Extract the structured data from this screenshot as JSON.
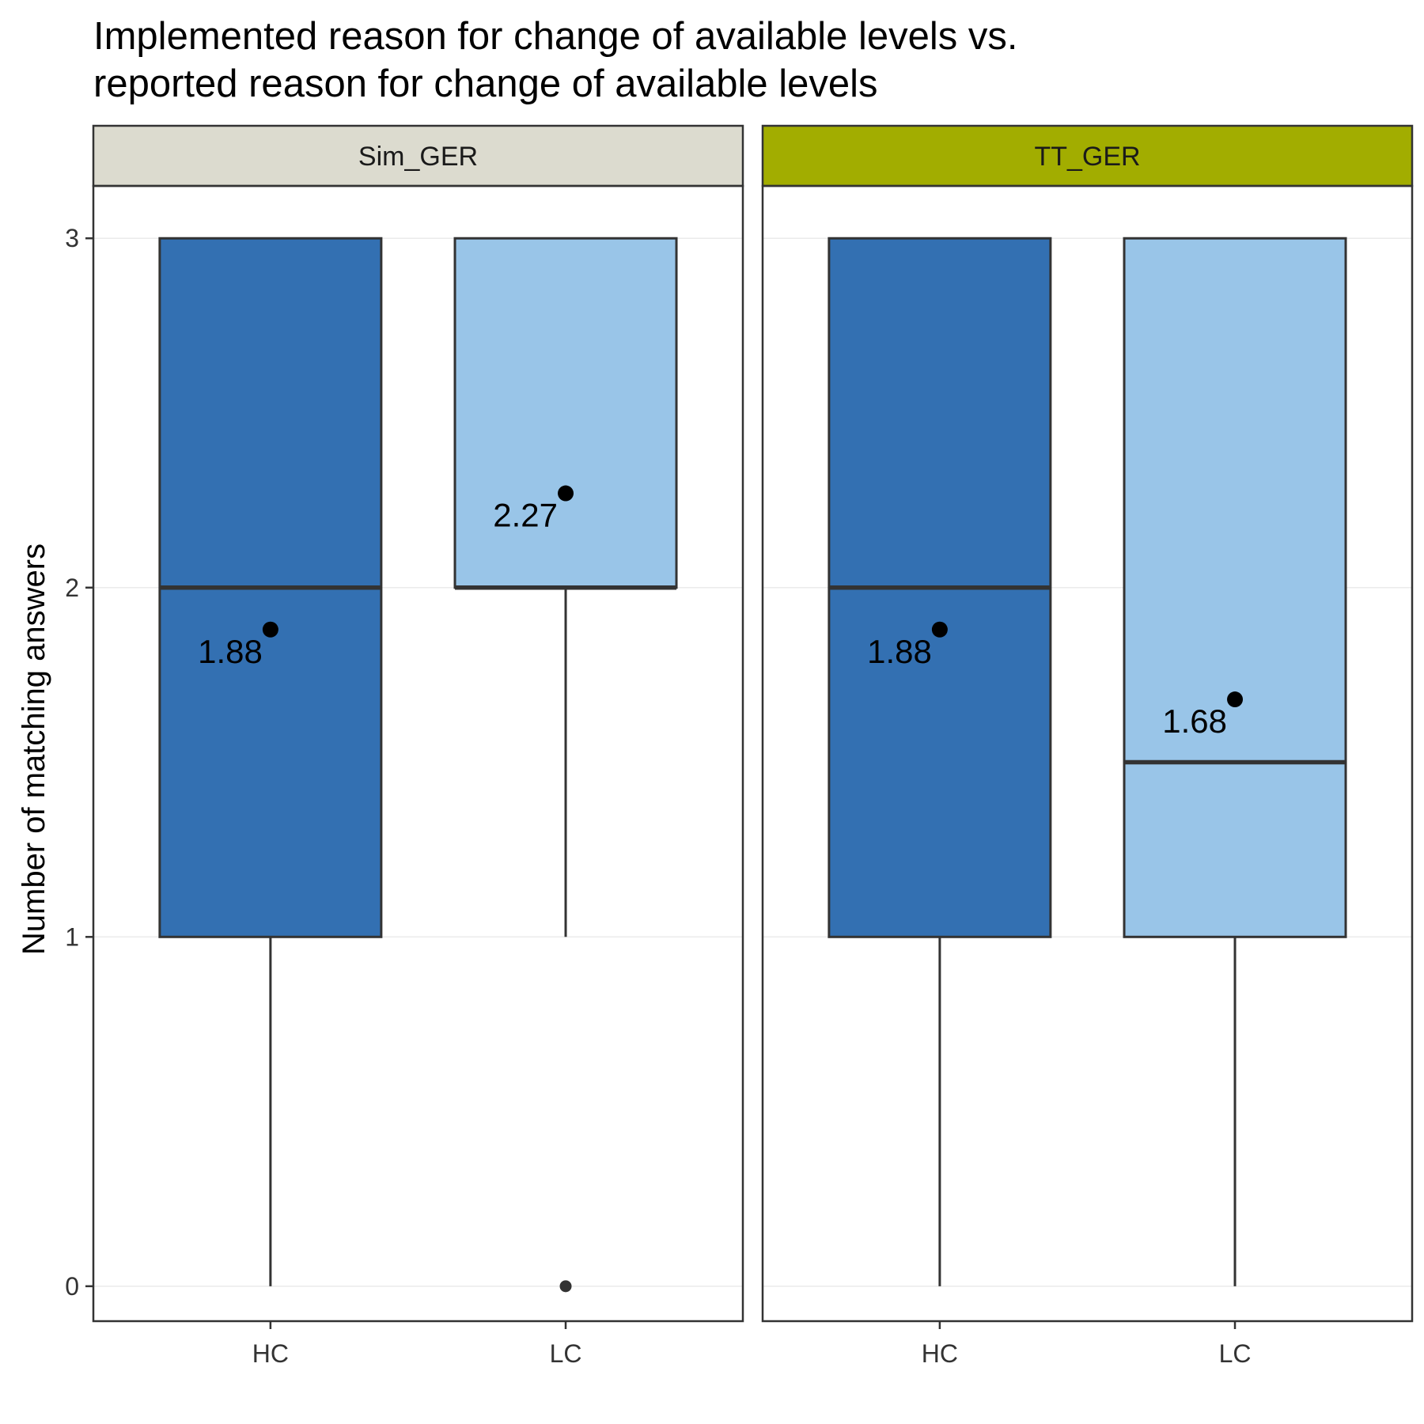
{
  "chart_data": {
    "type": "boxplot",
    "title": [
      "Implemented reason for change of available levels vs.",
      "reported reason for change of available levels"
    ],
    "ylabel": "Number of matching answers",
    "xlabel": "",
    "ylim": [
      -0.1,
      3.15
    ],
    "yticks": [
      0,
      1,
      2,
      3
    ],
    "categories": [
      "HC",
      "LC"
    ],
    "grid": true,
    "colors": {
      "HC": "#3370b2",
      "LC": "#99c5e8",
      "outline": "#333333",
      "mean_point": "#000000"
    },
    "panels": [
      {
        "name": "Sim_GER",
        "strip_color": "#dcdbcf",
        "boxes": [
          {
            "category": "HC",
            "whisker_low": 0,
            "q1": 1,
            "median": 2,
            "q3": 3,
            "whisker_high": 3,
            "outliers": [],
            "mean": 1.88,
            "mean_label": "1.88"
          },
          {
            "category": "LC",
            "whisker_low": 1,
            "q1": 2,
            "median": 2,
            "q3": 3,
            "whisker_high": 3,
            "outliers": [
              0
            ],
            "mean": 2.27,
            "mean_label": "2.27"
          }
        ]
      },
      {
        "name": "TT_GER",
        "strip_color": "#a2ad00",
        "boxes": [
          {
            "category": "HC",
            "whisker_low": 0,
            "q1": 1,
            "median": 2,
            "q3": 3,
            "whisker_high": 3,
            "outliers": [],
            "mean": 1.88,
            "mean_label": "1.88"
          },
          {
            "category": "LC",
            "whisker_low": 0,
            "q1": 1,
            "median": 1.5,
            "q3": 3,
            "whisker_high": 3,
            "outliers": [],
            "mean": 1.68,
            "mean_label": "1.68"
          }
        ]
      }
    ]
  }
}
